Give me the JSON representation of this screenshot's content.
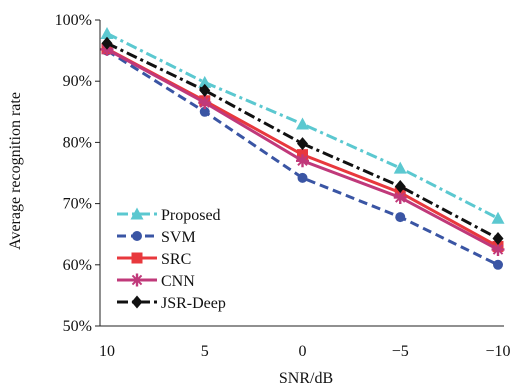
{
  "chart_data": {
    "type": "line",
    "xlabel": "SNR/dB",
    "ylabel": "Average recognition rate",
    "categories": [
      "10",
      "5",
      "0",
      "−5",
      "−10"
    ],
    "yticks": [
      "50%",
      "60%",
      "70%",
      "80%",
      "90%",
      "100%"
    ],
    "ylim": [
      50,
      100
    ],
    "grid": false,
    "legend_position": "bottom-left",
    "series": [
      {
        "name": "Proposed",
        "values": [
          97.8,
          89.8,
          83.0,
          75.8,
          67.6
        ],
        "color": "#5bc8d0",
        "dash": "dash-dot",
        "marker": "triangle"
      },
      {
        "name": "SVM",
        "values": [
          95.0,
          85.0,
          74.2,
          67.8,
          60.0
        ],
        "color": "#3a55a4",
        "dash": "dashed",
        "marker": "circle"
      },
      {
        "name": "SRC",
        "values": [
          95.3,
          86.8,
          78.0,
          71.8,
          63.0
        ],
        "color": "#e8383d",
        "dash": "solid",
        "marker": "square"
      },
      {
        "name": "CNN",
        "values": [
          95.2,
          86.5,
          77.0,
          71.0,
          62.5
        ],
        "color": "#c0397a",
        "dash": "solid",
        "marker": "star"
      },
      {
        "name": "JSR-Deep",
        "values": [
          96.2,
          88.5,
          79.8,
          72.8,
          64.3
        ],
        "color": "#111111",
        "dash": "dash-dot",
        "marker": "diamond"
      }
    ]
  }
}
